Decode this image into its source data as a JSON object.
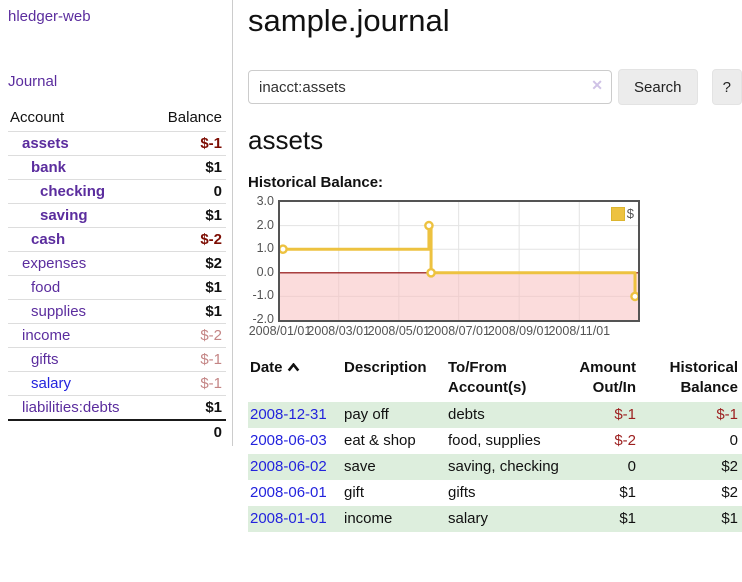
{
  "app": {
    "brand": "hledger-web",
    "nav_journal": "Journal"
  },
  "colors": {
    "link_purple": "#5b2d9e",
    "link_blue": "#2323dd",
    "negative_strong": "#7d0d03",
    "negative": "#9c1f1f",
    "negative_dim": "#c48585",
    "stripe_green": "#ddeedd",
    "chart_gold": "#edc240",
    "chart_negative_fill": "#f8c0c0",
    "chart_zero_line": "#8b0000"
  },
  "sidebar": {
    "columns": {
      "account": "Account",
      "balance": "Balance"
    },
    "accounts": [
      {
        "name": "assets",
        "balance": "$-1",
        "depth": 1,
        "bold": true,
        "bal_class": "neg-strong"
      },
      {
        "name": "bank",
        "balance": "$1",
        "depth": 2,
        "bold": true
      },
      {
        "name": "checking",
        "balance": "0",
        "depth": 3,
        "bold": true
      },
      {
        "name": "saving",
        "balance": "$1",
        "depth": 3,
        "bold": true
      },
      {
        "name": "cash",
        "balance": "$-2",
        "depth": 2,
        "bold": true,
        "bal_class": "neg-strong"
      },
      {
        "name": "expenses",
        "balance": "$2",
        "depth": 1
      },
      {
        "name": "food",
        "balance": "$1",
        "depth": 2
      },
      {
        "name": "supplies",
        "balance": "$1",
        "depth": 2
      },
      {
        "name": "income",
        "balance": "$-2",
        "depth": 1,
        "bal_class": "neg-dim"
      },
      {
        "name": "gifts",
        "balance": "$-1",
        "depth": 2,
        "bal_class": "neg-dim"
      },
      {
        "name": "salary",
        "balance": "$-1",
        "depth": 2,
        "blue": true,
        "bal_class": "neg-dim"
      },
      {
        "name": "liabilities:debts",
        "balance": "$1",
        "depth": 1
      }
    ],
    "total": "0"
  },
  "header": {
    "title": "sample.journal"
  },
  "search": {
    "value": "inacct:assets",
    "clear_icon": "✕",
    "button": "Search",
    "help_button": "?"
  },
  "account_page": {
    "heading": "assets",
    "chart_label": "Historical Balance:"
  },
  "chart_data": {
    "type": "line",
    "title": "Historical Balance:",
    "legend_position": "top-right",
    "grid": true,
    "ylim": [
      -2,
      3
    ],
    "y_ticks": [
      "3.0",
      "2.0",
      "1.0",
      "0.0",
      "-1.0",
      "-2.0"
    ],
    "y_gridlines": [
      2,
      1,
      -1
    ],
    "x_ticks": [
      {
        "label": "2008/01/01",
        "f": 0
      },
      {
        "label": "2008/03/01",
        "f": 0.164
      },
      {
        "label": "2008/05/01",
        "f": 0.332
      },
      {
        "label": "2008/07/01",
        "f": 0.499
      },
      {
        "label": "2008/09/01",
        "f": 0.668
      },
      {
        "label": "2008/11/01",
        "f": 0.836
      }
    ],
    "series": [
      {
        "name": "$",
        "color": "#edc240",
        "style": "step",
        "points": [
          {
            "x": "2008/01/01",
            "xf": 0,
            "y": 1
          },
          {
            "x": "2008/06/01",
            "xf": 0.416,
            "y": 2
          },
          {
            "x": "2008/06/03",
            "xf": 0.422,
            "y": 0
          },
          {
            "x": "2008/12/31",
            "xf": 1,
            "y": -1
          }
        ]
      }
    ]
  },
  "register": {
    "columns": {
      "date": "Date",
      "description": "Description",
      "accounts_line1": "To/From",
      "accounts_line2": "Account(s)",
      "amount_line1": "Amount",
      "amount_line2": "Out/In",
      "balance_line1": "Historical",
      "balance_line2": "Balance"
    },
    "rows": [
      {
        "date": "2008-12-31",
        "description": "pay off",
        "accounts": "debts",
        "amount": "$-1",
        "balance": "$-1",
        "amount_negative": true,
        "balance_negative": true
      },
      {
        "date": "2008-06-03",
        "description": "eat & shop",
        "accounts": "food, supplies",
        "amount": "$-2",
        "balance": "0",
        "amount_negative": true,
        "balance_negative": false
      },
      {
        "date": "2008-06-02",
        "description": "save",
        "accounts": "saving, checking",
        "amount": "0",
        "balance": "$2",
        "amount_negative": false,
        "balance_negative": false
      },
      {
        "date": "2008-06-01",
        "description": "gift",
        "accounts": "gifts",
        "amount": "$1",
        "balance": "$2",
        "amount_negative": false,
        "balance_negative": false
      },
      {
        "date": "2008-01-01",
        "description": "income",
        "accounts": "salary",
        "amount": "$1",
        "balance": "$1",
        "amount_negative": false,
        "balance_negative": false
      }
    ]
  }
}
